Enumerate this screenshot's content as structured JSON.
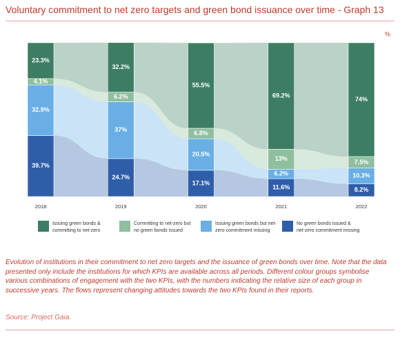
{
  "chart_data": {
    "type": "alluvial",
    "title": "Voluntary commitment to net zero targets and green bond issuance over time - Graph 13",
    "unit": "%",
    "categories": [
      "2018",
      "2019",
      "2020",
      "2021",
      "2022"
    ],
    "ylim": [
      0,
      100
    ],
    "series": [
      {
        "name": "No green bonds issued & net-zero commitment missing",
        "color": "#2f5ea8",
        "values": [
          39.7,
          24.7,
          17.1,
          11.6,
          8.2
        ],
        "value_labels": [
          "39.7%",
          "24.7%",
          "17.1%",
          "11.6%",
          "8.2%"
        ]
      },
      {
        "name": "Issuing green bonds but net-zero commitment missing",
        "color": "#6aaee6",
        "values": [
          32.9,
          37,
          20.5,
          6.2,
          10.3
        ],
        "value_labels": [
          "32.9%",
          "37%",
          "20.5%",
          "6.2%",
          "10.3%"
        ]
      },
      {
        "name": "Committing to net-zero but no green bonds issued",
        "color": "#8fbf9f",
        "values": [
          4.1,
          6.2,
          6.8,
          13,
          7.5
        ],
        "value_labels": [
          "4.1%",
          "6.2%",
          "6.8%",
          "13%",
          "7.5%"
        ]
      },
      {
        "name": "Issuing green bonds & committing to net-zero",
        "color": "#3d7d64",
        "values": [
          23.3,
          32.2,
          55.5,
          69.2,
          74
        ],
        "value_labels": [
          "23.3%",
          "32.2%",
          "55.5%",
          "69.2%",
          "74%"
        ]
      }
    ],
    "caption": "Evolution of institutions in their commitment to net zero targets and the issuance of green bonds over time. Note that the data presented only include the institutions for which KPIs are available across all periods. Different colour groups symbolise various combinations of engagement with the two KPIs, with the numbers indicating the relative size of each group in successive years. The flows represent changing attitudes towards the two KPIs found in their reports.",
    "source": "Source: Project Gaia."
  }
}
